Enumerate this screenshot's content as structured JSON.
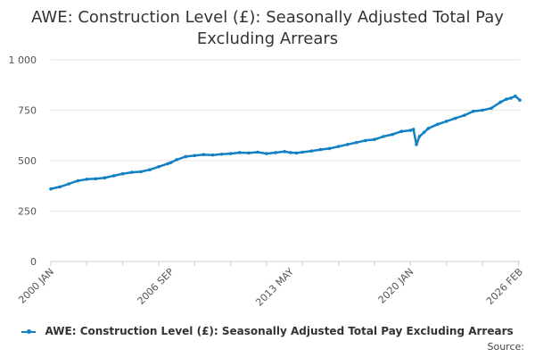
{
  "title_line1": "AWE: Construction Level (£): Seasonally Adjusted Total Pay",
  "title_line2": "Excluding Arrears",
  "legend_label": "AWE: Construction Level (£): Seasonally Adjusted Total Pay Excluding Arrears",
  "source_label": "Source:",
  "colors": {
    "series": "#1380c4",
    "grid": "#e6e6e6",
    "axis": "#cccccc"
  },
  "chart_data": {
    "type": "line",
    "title": "AWE: Construction Level (£): Seasonally Adjusted Total Pay Excluding Arrears",
    "xlabel": "",
    "ylabel": "",
    "x_tick_labels": [
      "2000 JAN",
      "2006 SEP",
      "2013 MAY",
      "2020 JAN",
      "2026 FEB"
    ],
    "y_tick_labels": [
      "0",
      "250",
      "500",
      "750",
      "1 000"
    ],
    "y_ticks": [
      0,
      250,
      500,
      750,
      1000
    ],
    "ylim": [
      0,
      1000
    ],
    "xlim": [
      "2000-01",
      "2026-02"
    ],
    "grid": true,
    "legend_position": "bottom",
    "series": [
      {
        "name": "AWE: Construction Level (£): Seasonally Adjusted Total Pay Excluding Arrears",
        "x": [
          "2000-01",
          "2000-07",
          "2001-01",
          "2001-07",
          "2002-01",
          "2002-07",
          "2003-01",
          "2003-07",
          "2004-01",
          "2004-07",
          "2005-01",
          "2005-07",
          "2006-01",
          "2006-07",
          "2006-09",
          "2007-01",
          "2007-07",
          "2008-01",
          "2008-07",
          "2009-01",
          "2009-07",
          "2010-01",
          "2010-07",
          "2011-01",
          "2011-07",
          "2012-01",
          "2012-07",
          "2013-01",
          "2013-05",
          "2013-09",
          "2014-01",
          "2014-07",
          "2015-01",
          "2015-07",
          "2016-01",
          "2016-07",
          "2017-01",
          "2017-07",
          "2018-01",
          "2018-07",
          "2019-01",
          "2019-07",
          "2020-01",
          "2020-03",
          "2020-05",
          "2020-07",
          "2020-10",
          "2021-01",
          "2021-07",
          "2022-01",
          "2022-07",
          "2023-01",
          "2023-07",
          "2024-01",
          "2024-07",
          "2025-01",
          "2025-05",
          "2025-08",
          "2025-11",
          "2026-02"
        ],
        "values": [
          360,
          370,
          385,
          400,
          408,
          410,
          415,
          425,
          435,
          442,
          445,
          455,
          470,
          485,
          490,
          505,
          520,
          525,
          530,
          528,
          532,
          535,
          540,
          538,
          542,
          535,
          540,
          545,
          540,
          538,
          542,
          548,
          555,
          560,
          570,
          580,
          590,
          600,
          605,
          620,
          630,
          645,
          650,
          655,
          580,
          620,
          640,
          660,
          680,
          695,
          710,
          725,
          745,
          750,
          760,
          790,
          805,
          810,
          820,
          800
        ]
      }
    ]
  }
}
